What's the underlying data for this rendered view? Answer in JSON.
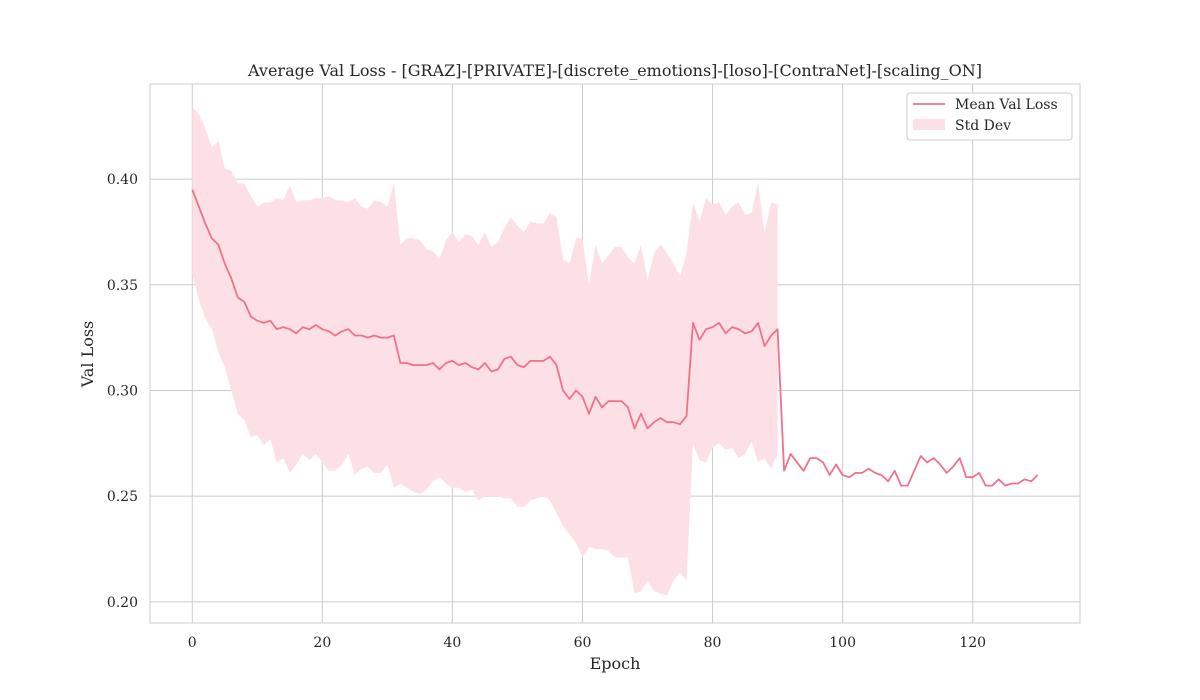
{
  "chart_data": {
    "type": "line",
    "title": "Average Val Loss - [GRAZ]-[PRIVATE]-[discrete_emotions]-[loso]-[ContraNet]-[scaling_ON]",
    "xlabel": "Epoch",
    "ylabel": "Val Loss",
    "xlim": [
      -6.5,
      136.5
    ],
    "ylim": [
      0.19,
      0.445
    ],
    "xticks": [
      0,
      20,
      40,
      60,
      80,
      100,
      120
    ],
    "yticks": [
      0.2,
      0.25,
      0.3,
      0.35,
      0.4
    ],
    "xtick_labels": [
      "0",
      "20",
      "40",
      "60",
      "80",
      "100",
      "120"
    ],
    "ytick_labels": [
      "0.20",
      "0.25",
      "0.30",
      "0.35",
      "0.40"
    ],
    "grid": true,
    "legend_position": "top-right",
    "colors": {
      "line": "#f0728a",
      "band": "#fde0e6",
      "grid": "#cccccc",
      "frame": "#cccccc"
    },
    "series": [
      {
        "name": "Mean Val Loss",
        "kind": "line",
        "x": [
          0,
          1,
          2,
          3,
          4,
          5,
          6,
          7,
          8,
          9,
          10,
          11,
          12,
          13,
          14,
          15,
          16,
          17,
          18,
          19,
          20,
          21,
          22,
          23,
          24,
          25,
          26,
          27,
          28,
          29,
          30,
          31,
          32,
          33,
          34,
          35,
          36,
          37,
          38,
          39,
          40,
          41,
          42,
          43,
          44,
          45,
          46,
          47,
          48,
          49,
          50,
          51,
          52,
          53,
          54,
          55,
          56,
          57,
          58,
          59,
          60,
          61,
          62,
          63,
          64,
          65,
          66,
          67,
          68,
          69,
          70,
          71,
          72,
          73,
          74,
          75,
          76,
          77,
          78,
          79,
          80,
          81,
          82,
          83,
          84,
          85,
          86,
          87,
          88,
          89,
          90,
          91,
          92,
          93,
          94,
          95,
          96,
          97,
          98,
          99,
          100,
          101,
          102,
          103,
          104,
          105,
          106,
          107,
          108,
          109,
          110,
          111,
          112,
          113,
          114,
          115,
          116,
          117,
          118,
          119,
          120,
          121,
          122,
          123,
          124,
          125,
          126,
          127,
          128,
          129,
          130
        ],
        "y": [
          0.395,
          0.387,
          0.379,
          0.372,
          0.369,
          0.36,
          0.353,
          0.344,
          0.342,
          0.335,
          0.333,
          0.332,
          0.333,
          0.329,
          0.33,
          0.329,
          0.327,
          0.33,
          0.329,
          0.331,
          0.329,
          0.328,
          0.326,
          0.328,
          0.329,
          0.326,
          0.326,
          0.325,
          0.326,
          0.325,
          0.325,
          0.326,
          0.313,
          0.313,
          0.312,
          0.312,
          0.312,
          0.313,
          0.31,
          0.313,
          0.314,
          0.312,
          0.313,
          0.311,
          0.31,
          0.313,
          0.309,
          0.31,
          0.315,
          0.316,
          0.312,
          0.311,
          0.314,
          0.314,
          0.314,
          0.316,
          0.312,
          0.3,
          0.296,
          0.3,
          0.297,
          0.289,
          0.297,
          0.292,
          0.295,
          0.295,
          0.295,
          0.292,
          0.282,
          0.289,
          0.282,
          0.285,
          0.287,
          0.285,
          0.285,
          0.284,
          0.288,
          0.332,
          0.324,
          0.329,
          0.33,
          0.332,
          0.327,
          0.33,
          0.329,
          0.327,
          0.328,
          0.332,
          0.321,
          0.326,
          0.329,
          0.262,
          0.27,
          0.266,
          0.262,
          0.268,
          0.268,
          0.266,
          0.26,
          0.265,
          0.26,
          0.259,
          0.261,
          0.261,
          0.263,
          0.261,
          0.26,
          0.257,
          0.262,
          0.255,
          0.255,
          0.262,
          0.269,
          0.266,
          0.268,
          0.265,
          0.261,
          0.264,
          0.268,
          0.259,
          0.259,
          0.261,
          0.255,
          0.255,
          0.258,
          0.255,
          0.256,
          0.256,
          0.258,
          0.257,
          0.26
        ]
      },
      {
        "name": "Std Dev",
        "kind": "band",
        "x": [
          0,
          1,
          2,
          3,
          4,
          5,
          6,
          7,
          8,
          9,
          10,
          11,
          12,
          13,
          14,
          15,
          16,
          17,
          18,
          19,
          20,
          21,
          22,
          23,
          24,
          25,
          26,
          27,
          28,
          29,
          30,
          31,
          32,
          33,
          34,
          35,
          36,
          37,
          38,
          39,
          40,
          41,
          42,
          43,
          44,
          45,
          46,
          47,
          48,
          49,
          50,
          51,
          52,
          53,
          54,
          55,
          56,
          57,
          58,
          59,
          60,
          61,
          62,
          63,
          64,
          65,
          66,
          67,
          68,
          69,
          70,
          71,
          72,
          73,
          74,
          75,
          76,
          77,
          78,
          79,
          80,
          81,
          82,
          83,
          84,
          85,
          86,
          87,
          88,
          89,
          90
        ],
        "upper": [
          0.434,
          0.431,
          0.424,
          0.415,
          0.418,
          0.405,
          0.404,
          0.398,
          0.398,
          0.392,
          0.387,
          0.389,
          0.389,
          0.391,
          0.39,
          0.397,
          0.389,
          0.39,
          0.39,
          0.391,
          0.391,
          0.392,
          0.39,
          0.39,
          0.389,
          0.391,
          0.387,
          0.386,
          0.39,
          0.389,
          0.387,
          0.398,
          0.369,
          0.372,
          0.372,
          0.371,
          0.367,
          0.366,
          0.362,
          0.371,
          0.375,
          0.37,
          0.374,
          0.373,
          0.369,
          0.375,
          0.368,
          0.37,
          0.377,
          0.382,
          0.378,
          0.375,
          0.38,
          0.379,
          0.379,
          0.384,
          0.382,
          0.362,
          0.36,
          0.372,
          0.372,
          0.35,
          0.369,
          0.36,
          0.364,
          0.368,
          0.368,
          0.363,
          0.36,
          0.369,
          0.352,
          0.365,
          0.369,
          0.365,
          0.36,
          0.354,
          0.365,
          0.389,
          0.38,
          0.391,
          0.388,
          0.389,
          0.383,
          0.387,
          0.389,
          0.383,
          0.384,
          0.398,
          0.375,
          0.389,
          0.388
        ],
        "lower": [
          0.355,
          0.343,
          0.334,
          0.329,
          0.318,
          0.311,
          0.3,
          0.289,
          0.286,
          0.278,
          0.279,
          0.274,
          0.277,
          0.266,
          0.268,
          0.261,
          0.265,
          0.27,
          0.267,
          0.27,
          0.266,
          0.262,
          0.262,
          0.265,
          0.27,
          0.26,
          0.263,
          0.264,
          0.261,
          0.261,
          0.265,
          0.254,
          0.256,
          0.254,
          0.252,
          0.251,
          0.253,
          0.257,
          0.259,
          0.256,
          0.254,
          0.254,
          0.252,
          0.253,
          0.248,
          0.25,
          0.25,
          0.25,
          0.249,
          0.249,
          0.245,
          0.245,
          0.248,
          0.249,
          0.25,
          0.248,
          0.242,
          0.236,
          0.232,
          0.228,
          0.221,
          0.226,
          0.225,
          0.225,
          0.224,
          0.221,
          0.221,
          0.221,
          0.204,
          0.205,
          0.21,
          0.205,
          0.204,
          0.203,
          0.21,
          0.214,
          0.21,
          0.275,
          0.267,
          0.266,
          0.273,
          0.275,
          0.272,
          0.273,
          0.268,
          0.27,
          0.276,
          0.266,
          0.268,
          0.263,
          0.27
        ]
      }
    ]
  }
}
